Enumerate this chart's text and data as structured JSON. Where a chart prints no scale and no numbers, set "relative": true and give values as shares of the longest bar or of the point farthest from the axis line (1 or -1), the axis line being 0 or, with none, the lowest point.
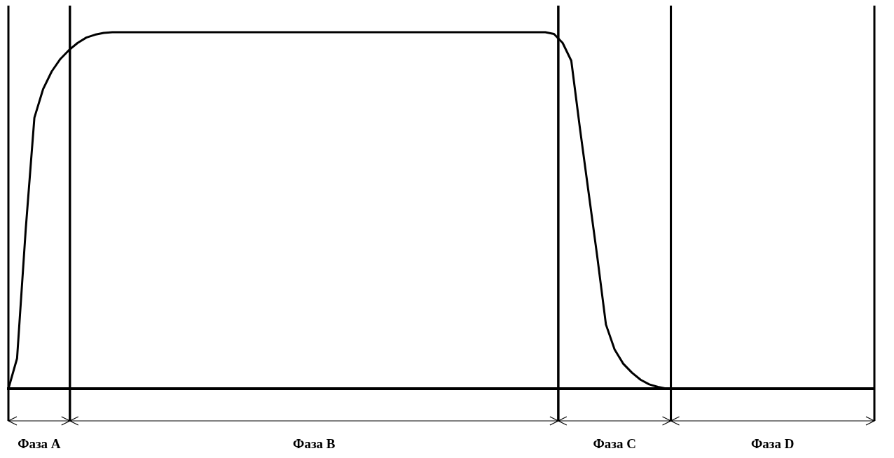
{
  "chart_data": {
    "type": "line",
    "relative": true,
    "categories": [
      null,
      null,
      null,
      null,
      null,
      null,
      null,
      null,
      null,
      null,
      null,
      null,
      null,
      null,
      null,
      null,
      null,
      null,
      null,
      null,
      null,
      null,
      null,
      null,
      null,
      null,
      null,
      null,
      null,
      null,
      null,
      null,
      null,
      null,
      null,
      null,
      null,
      null,
      null,
      null,
      null,
      null,
      null,
      null,
      null,
      null,
      null,
      null,
      null,
      null,
      null,
      null,
      null,
      null,
      null,
      null,
      null,
      null,
      null,
      null,
      null,
      null,
      null,
      null,
      null,
      null,
      null,
      null,
      null,
      null,
      null,
      null,
      null,
      null,
      null,
      null,
      null,
      null,
      null,
      null,
      null,
      null,
      null,
      null,
      null,
      null,
      null,
      null,
      null,
      null,
      null,
      null,
      null,
      null,
      null,
      null,
      null,
      null,
      null,
      null,
      null
    ],
    "series": [
      {
        "color": "#000000",
        "values": [
          0,
          0.085,
          0.447,
          0.76,
          0.84,
          0.89,
          0.925,
          0.95,
          0.97,
          0.985,
          0.993,
          0.998,
          1,
          1,
          1,
          1,
          1,
          1,
          1,
          1,
          1,
          1,
          1,
          1,
          1,
          1,
          1,
          1,
          1,
          1,
          1,
          1,
          1,
          1,
          1,
          1,
          1,
          1,
          1,
          1,
          1,
          1,
          1,
          1,
          1,
          1,
          1,
          1,
          1,
          1,
          1,
          1,
          1,
          1,
          1,
          1,
          1,
          1,
          1,
          1,
          1,
          1,
          1,
          0.995,
          0.97,
          0.92,
          0.73,
          0.55,
          0.37,
          0.18,
          0.11,
          0.07,
          0.045,
          0.025,
          0.012,
          0.005,
          0,
          0,
          0,
          0,
          0,
          0,
          0,
          0,
          0,
          0,
          0,
          0,
          0,
          0,
          0,
          0,
          0,
          0,
          0,
          0,
          0,
          0,
          0,
          0,
          0
        ]
      }
    ],
    "annotations": [
      "Фаза A",
      "Фаза B",
      "Фаза C",
      "Фаза D"
    ]
  }
}
